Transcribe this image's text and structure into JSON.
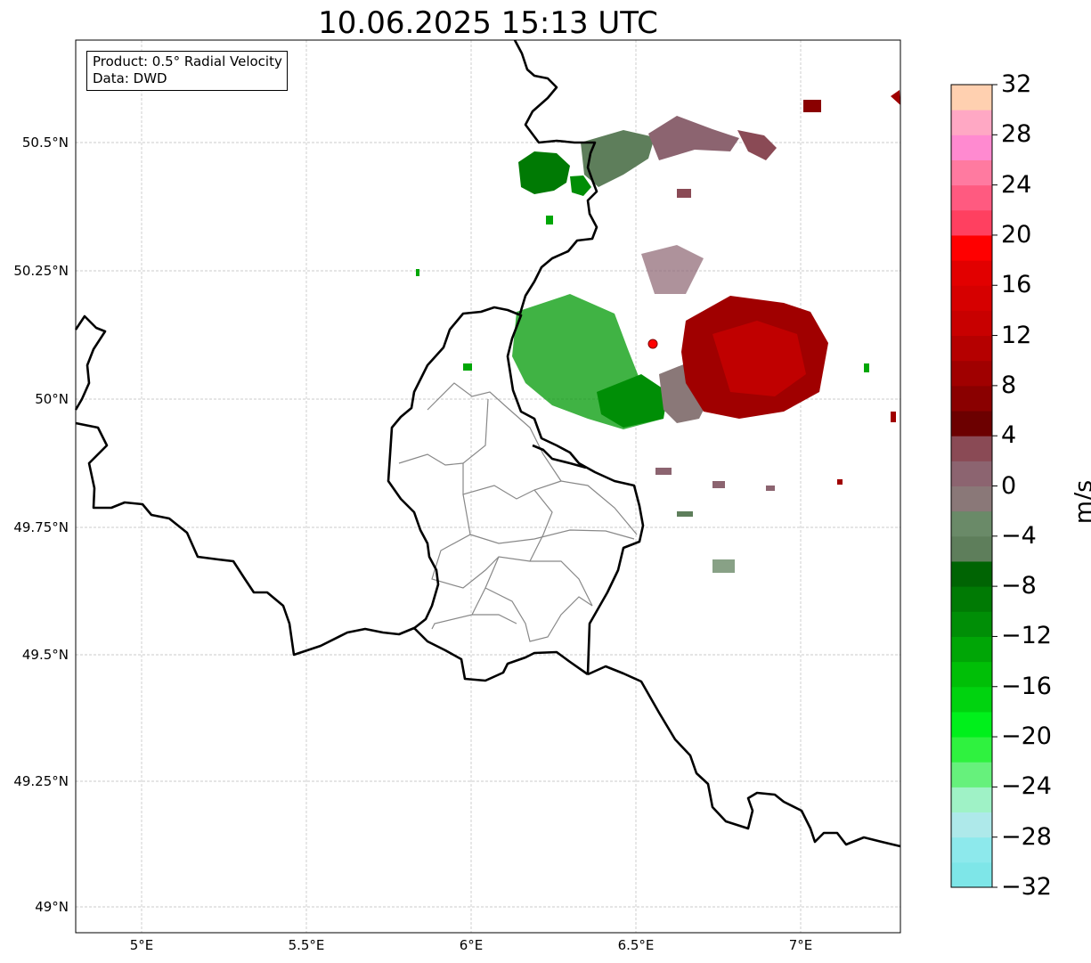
{
  "title": "10.06.2025 15:13 UTC",
  "info": {
    "line1": "Product: 0.5° Radial Velocity",
    "line2": "Data: DWD"
  },
  "axes": {
    "lat_labels": [
      "50.5°N",
      "50.25°N",
      "50°N",
      "49.75°N",
      "49.5°N",
      "49.25°N",
      "49°N"
    ],
    "lon_labels": [
      "5°E",
      "5.5°E",
      "6°E",
      "6.5°E",
      "7°E"
    ]
  },
  "map": {
    "lon_range": [
      4.8,
      7.3
    ],
    "lat_range": [
      48.95,
      50.7
    ],
    "grid": true,
    "radar_site": {
      "lon": 6.55,
      "lat": 50.11
    }
  },
  "colorbar": {
    "unit": "m/s",
    "tick_labels": [
      "32",
      "28",
      "24",
      "20",
      "16",
      "12",
      "8",
      "4",
      "0",
      "−4",
      "−8",
      "−12",
      "−16",
      "−20",
      "−24",
      "−28",
      "−32"
    ],
    "range": [
      -32,
      32
    ],
    "colors": [
      "#7ee6e8",
      "#8de9ec",
      "#aee9ea",
      "#9ff2c6",
      "#66f17c",
      "#2ff23f",
      "#00f01b",
      "#00d30f",
      "#00bf07",
      "#00a606",
      "#008e06",
      "#007a04",
      "#006403",
      "#5e7e5b",
      "#6a8a68",
      "#8a7878",
      "#8c6470",
      "#8a4a55",
      "#6c0000",
      "#8a0000",
      "#a00000",
      "#b50000",
      "#c80000",
      "#d60000",
      "#e20000",
      "#ff0000",
      "#ff4060",
      "#ff5a80",
      "#ff7aa0",
      "#ff8ad0",
      "#ffa8c4",
      "#ffd0b0"
    ]
  }
}
